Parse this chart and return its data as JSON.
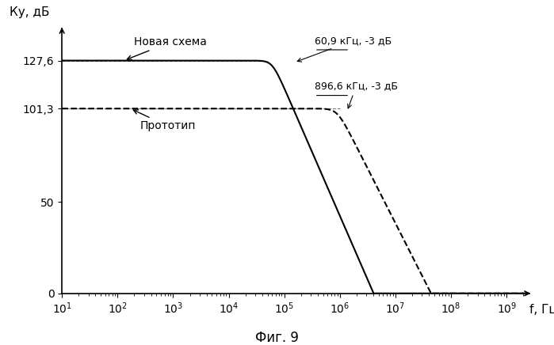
{
  "title_below": "Фиг. 9",
  "ylabel": "Ку, дБ",
  "xlabel": "f, Гц",
  "ylim": [
    0,
    145
  ],
  "yticks": [
    0,
    50,
    101.3,
    127.6
  ],
  "ytick_labels": [
    "0",
    "50",
    "101,3",
    "127,6"
  ],
  "solid_label": "Новая схема",
  "solid_flat": 127.6,
  "solid_f3db": 60900,
  "solid_poles": 3.5,
  "solid_color": "#000000",
  "dashed_label": "Прототип",
  "dashed_flat": 101.3,
  "dashed_f3db": 896600,
  "dashed_poles": 3.0,
  "dashed_color": "#000000",
  "annotation_solid": "60,9 кГц, -3 дБ",
  "annotation_dashed": "896,6 кГц, -3 дБ",
  "background_color": "#ffffff",
  "fig_width": 6.99,
  "fig_height": 4.36,
  "dpi": 100
}
